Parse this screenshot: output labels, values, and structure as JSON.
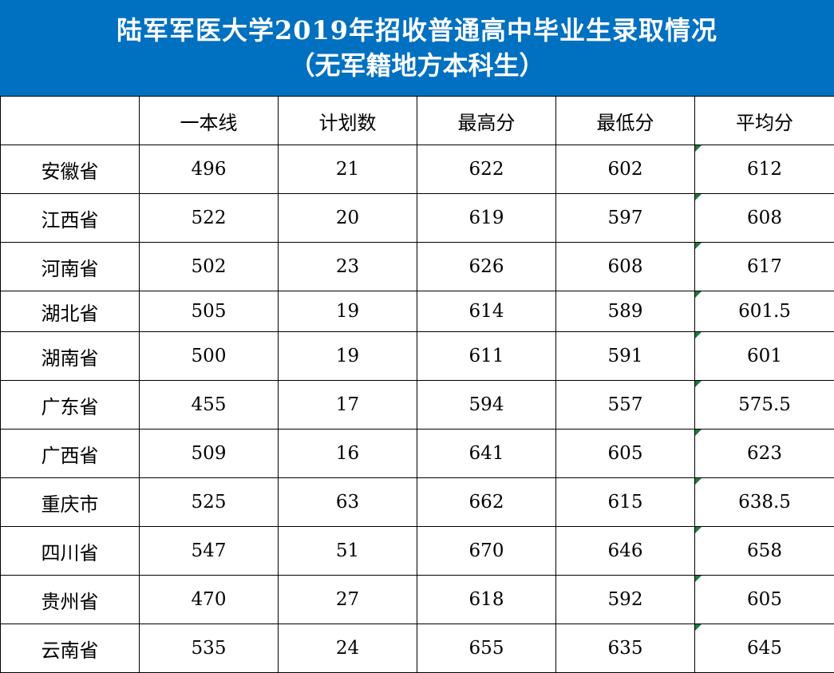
{
  "title": {
    "line1": "陆军军医大学2019年招收普通高中毕业生录取情况",
    "line2": "（无军籍地方本科生）"
  },
  "colors": {
    "header_bg": "#0070c0",
    "corner_flag": "#1f7a3a"
  },
  "table": {
    "headers": [
      "",
      "一本线",
      "计划数",
      "最高分",
      "最低分",
      "平均分"
    ],
    "rows": [
      [
        "安徽省",
        "496",
        "21",
        "622",
        "602",
        "612"
      ],
      [
        "江西省",
        "522",
        "20",
        "619",
        "597",
        "608"
      ],
      [
        "河南省",
        "502",
        "23",
        "626",
        "608",
        "617"
      ],
      [
        "湖北省",
        "505",
        "19",
        "614",
        "589",
        "601.5"
      ],
      [
        "湖南省",
        "500",
        "19",
        "611",
        "591",
        "601"
      ],
      [
        "广东省",
        "455",
        "17",
        "594",
        "557",
        "575.5"
      ],
      [
        "广西省",
        "509",
        "16",
        "641",
        "605",
        "623"
      ],
      [
        "重庆市",
        "525",
        "63",
        "662",
        "615",
        "638.5"
      ],
      [
        "四川省",
        "547",
        "51",
        "670",
        "646",
        "658"
      ],
      [
        "贵州省",
        "470",
        "27",
        "618",
        "592",
        "605"
      ],
      [
        "云南省",
        "535",
        "24",
        "655",
        "635",
        "645"
      ]
    ]
  }
}
